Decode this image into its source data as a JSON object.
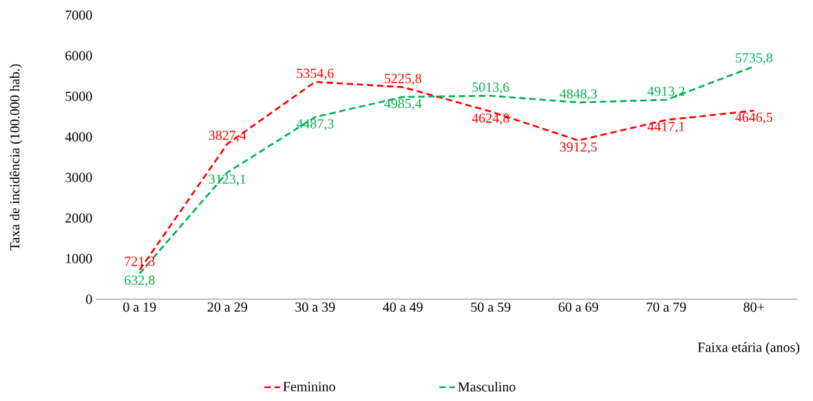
{
  "chart_data": {
    "type": "line",
    "xlabel": "Faixa etária (anos)",
    "ylabel": "Taxa de incidência (100.000 hab.)",
    "categories": [
      "0 a 19",
      "20 a 29",
      "30 a 39",
      "40 a 49",
      "50 a 59",
      "60 a 69",
      "70 a 79",
      "80+"
    ],
    "series": [
      {
        "name": "Feminino",
        "color": "#ff0000",
        "values": [
          721.3,
          3827.4,
          5354.6,
          5225.8,
          4624.8,
          3912.5,
          4417.1,
          4646.5
        ],
        "value_labels": [
          "721,3",
          "3827,4",
          "5354,6",
          "5225,8",
          "4624,8",
          "3912,5",
          "4417,1",
          "4646,5"
        ]
      },
      {
        "name": "Masculino",
        "color": "#00b050",
        "values": [
          632.8,
          3123.1,
          4487.3,
          4985.4,
          5013.6,
          4848.3,
          4913.2,
          5735.8
        ],
        "value_labels": [
          "632,8",
          "3123,1",
          "4487,3",
          "4985,4",
          "5013,6",
          "4848,3",
          "4913,2",
          "5735,8"
        ]
      }
    ],
    "ylim": [
      0,
      7000
    ],
    "yticks": [
      0,
      1000,
      2000,
      3000,
      4000,
      5000,
      6000,
      7000
    ],
    "grid": false,
    "legend": "bottom",
    "marker": "none",
    "line_style": "dashed"
  }
}
